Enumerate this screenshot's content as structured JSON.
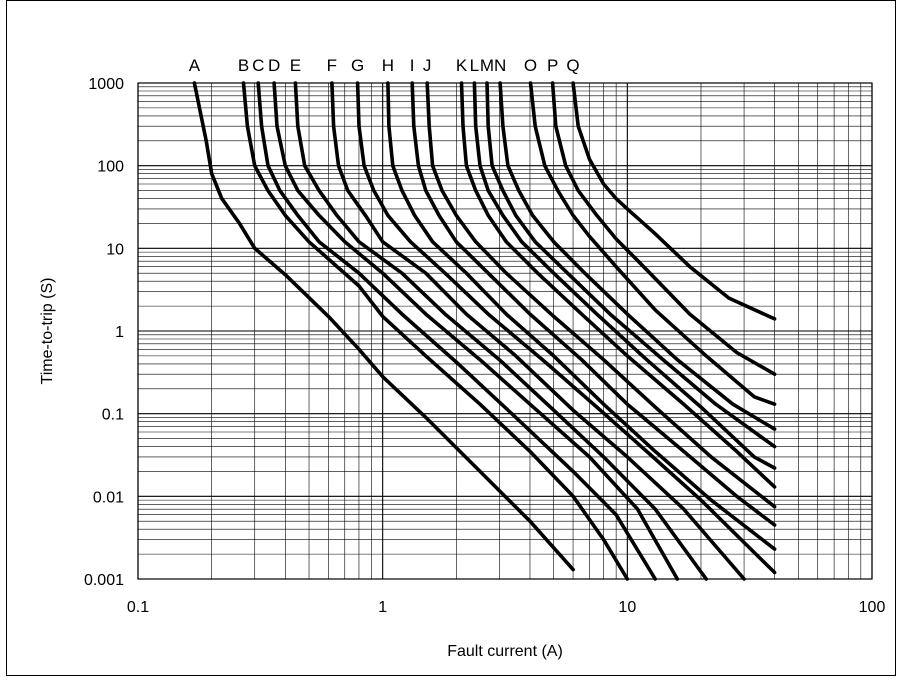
{
  "chart_data": {
    "type": "line",
    "title": "",
    "xlabel": "Fault current (A)",
    "ylabel": "Time-to-trip (S)",
    "x_scale": "log",
    "y_scale": "log",
    "xlim": [
      0.1,
      100
    ],
    "ylim": [
      0.001,
      1000
    ],
    "grid": true,
    "legend": "curve labels above plot",
    "x_ticks": [
      "0.1",
      "1",
      "10",
      "100"
    ],
    "y_ticks": [
      "1000",
      "100",
      "10",
      "1",
      "0.1",
      "0.01",
      "0.001"
    ],
    "line_color": "#000000",
    "series": [
      {
        "name": "A",
        "x": [
          0.17,
          0.19,
          0.2,
          0.22,
          0.26,
          0.3,
          0.4,
          0.6,
          0.8,
          1.0,
          1.5,
          2.5,
          4.0,
          6.0
        ],
        "y": [
          1000,
          200,
          80,
          40,
          20,
          10,
          4.8,
          1.5,
          0.6,
          0.28,
          0.09,
          0.02,
          0.005,
          0.0013
        ]
      },
      {
        "name": "B",
        "x": [
          0.27,
          0.28,
          0.3,
          0.34,
          0.4,
          0.5,
          0.8,
          1.0,
          1.5,
          2.5,
          4.0,
          6.0,
          8.0,
          10.0
        ],
        "y": [
          1000,
          300,
          100,
          50,
          25,
          12,
          3.5,
          1.5,
          0.5,
          0.13,
          0.035,
          0.01,
          0.003,
          0.001
        ]
      },
      {
        "name": "C",
        "x": [
          0.31,
          0.32,
          0.34,
          0.38,
          0.45,
          0.55,
          0.8,
          1.2,
          2.0,
          3.5,
          6.0,
          9.0,
          13.0
        ],
        "y": [
          1000,
          300,
          100,
          50,
          25,
          12,
          5,
          1.6,
          0.42,
          0.09,
          0.02,
          0.006,
          0.001
        ]
      },
      {
        "name": "D",
        "x": [
          0.36,
          0.37,
          0.4,
          0.45,
          0.55,
          0.7,
          1.0,
          1.5,
          2.5,
          4.0,
          7.0,
          11.0,
          16.0
        ],
        "y": [
          1000,
          300,
          100,
          50,
          25,
          12,
          5,
          1.6,
          0.45,
          0.13,
          0.03,
          0.007,
          0.001
        ]
      },
      {
        "name": "E",
        "x": [
          0.44,
          0.45,
          0.48,
          0.55,
          0.65,
          0.8,
          1.2,
          1.8,
          3.0,
          5.0,
          8.0,
          13.0,
          21.0
        ],
        "y": [
          1000,
          300,
          100,
          50,
          25,
          12,
          5,
          1.6,
          0.45,
          0.11,
          0.03,
          0.007,
          0.001
        ]
      },
      {
        "name": "F",
        "x": [
          0.62,
          0.63,
          0.66,
          0.72,
          0.85,
          1.0,
          1.5,
          2.2,
          3.5,
          6.0,
          10.0,
          17.0,
          30.0
        ],
        "y": [
          1000,
          300,
          100,
          50,
          25,
          12,
          5,
          1.6,
          0.5,
          0.11,
          0.03,
          0.007,
          0.001
        ]
      },
      {
        "name": "G",
        "x": [
          0.79,
          0.8,
          0.84,
          0.92,
          1.05,
          1.3,
          1.8,
          2.7,
          4.5,
          7.5,
          12.0,
          20.0,
          40.0
        ],
        "y": [
          1000,
          300,
          100,
          50,
          25,
          12,
          5,
          1.6,
          0.45,
          0.12,
          0.035,
          0.009,
          0.0012
        ]
      },
      {
        "name": "H",
        "x": [
          1.05,
          1.06,
          1.1,
          1.2,
          1.35,
          1.6,
          2.2,
          3.2,
          5.0,
          8.0,
          13.0,
          22.0,
          40.0
        ],
        "y": [
          1000,
          300,
          100,
          50,
          25,
          12,
          5,
          1.6,
          0.5,
          0.13,
          0.035,
          0.009,
          0.0023
        ]
      },
      {
        "name": "I",
        "x": [
          1.32,
          1.34,
          1.4,
          1.5,
          1.7,
          2.0,
          2.7,
          4.0,
          6.5,
          10.0,
          17.0,
          28.0,
          40.0
        ],
        "y": [
          1000,
          300,
          100,
          50,
          25,
          12,
          5,
          1.6,
          0.45,
          0.13,
          0.035,
          0.01,
          0.0045
        ]
      },
      {
        "name": "J",
        "x": [
          1.52,
          1.55,
          1.6,
          1.75,
          2.0,
          2.4,
          3.2,
          5.0,
          8.0,
          13.0,
          22.0,
          40.0
        ],
        "y": [
          1000,
          300,
          100,
          50,
          25,
          12,
          5,
          1.5,
          0.45,
          0.12,
          0.03,
          0.0075
        ]
      },
      {
        "name": "K",
        "x": [
          2.1,
          2.13,
          2.2,
          2.4,
          2.7,
          3.2,
          4.3,
          6.5,
          10.0,
          17.0,
          28.0,
          40.0
        ],
        "y": [
          1000,
          300,
          100,
          50,
          25,
          12,
          5,
          1.6,
          0.5,
          0.13,
          0.035,
          0.013
        ]
      },
      {
        "name": "L",
        "x": [
          2.37,
          2.4,
          2.5,
          2.7,
          3.1,
          3.7,
          5.0,
          7.5,
          12.0,
          20.0,
          33.0,
          40.0
        ],
        "y": [
          1000,
          300,
          100,
          50,
          25,
          12,
          5,
          1.6,
          0.45,
          0.12,
          0.03,
          0.022
        ]
      },
      {
        "name": "M",
        "x": [
          2.67,
          2.7,
          2.8,
          3.1,
          3.5,
          4.2,
          5.7,
          8.5,
          14.0,
          23.0,
          40.0
        ],
        "y": [
          1000,
          300,
          100,
          50,
          25,
          12,
          5,
          1.6,
          0.45,
          0.13,
          0.04
        ]
      },
      {
        "name": "N",
        "x": [
          3.02,
          3.1,
          3.25,
          3.6,
          4.1,
          5.0,
          6.7,
          10.0,
          16.0,
          27.0,
          40.0
        ],
        "y": [
          1000,
          300,
          100,
          50,
          25,
          12,
          5,
          1.6,
          0.45,
          0.13,
          0.065
        ]
      },
      {
        "name": "O",
        "x": [
          4.02,
          4.2,
          4.6,
          5.2,
          6.0,
          7.0,
          9.0,
          13.0,
          21.0,
          33.0,
          40.0
        ],
        "y": [
          1000,
          300,
          100,
          50,
          25,
          14,
          6,
          1.8,
          0.5,
          0.16,
          0.13
        ]
      },
      {
        "name": "P",
        "x": [
          4.95,
          5.1,
          5.6,
          6.3,
          7.5,
          9.0,
          12.0,
          18.0,
          28.0,
          40.0
        ],
        "y": [
          1000,
          300,
          100,
          50,
          25,
          13,
          5.5,
          1.6,
          0.55,
          0.3
        ]
      },
      {
        "name": "Q",
        "x": [
          6.0,
          6.3,
          7.0,
          8.0,
          9.0,
          10.0,
          13.0,
          18.0,
          26.0,
          40.0
        ],
        "y": [
          1000,
          300,
          120,
          60,
          40,
          30,
          15,
          6,
          2.5,
          1.4
        ]
      }
    ]
  }
}
